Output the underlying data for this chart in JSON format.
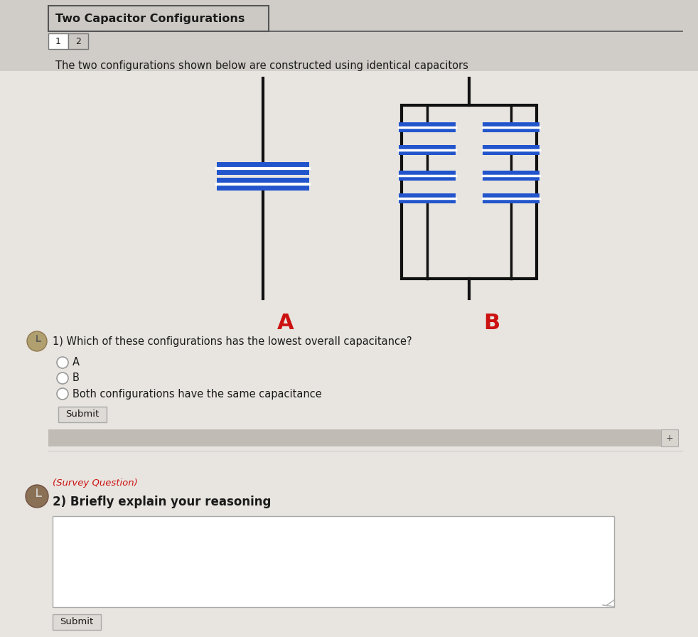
{
  "bg_top": "#d0cdc8",
  "bg_main": "#e8e5e0",
  "title_text": "Two Capacitor Configurations",
  "tabs": [
    "1",
    "2"
  ],
  "description": "The two configurations shown below are constructed using identical capacitors",
  "label_A": "A",
  "label_B": "B",
  "q1_text": "1) Which of these configurations has the lowest overall capacitance?",
  "options": [
    "A",
    "B",
    "Both configurations have the same capacitance"
  ],
  "submit_text": "Submit",
  "survey_label": "(Survey Question)",
  "q2_text": "2) Briefly explain your reasoning",
  "cap_color": "#2255cc",
  "wire_color": "#111111",
  "box_color": "#111111",
  "label_color": "#cc1111",
  "text_color": "#1a1a1a",
  "survey_color": "#cc1111",
  "scrollbar_color": "#c0bbb5",
  "radio_edge": "#999999"
}
